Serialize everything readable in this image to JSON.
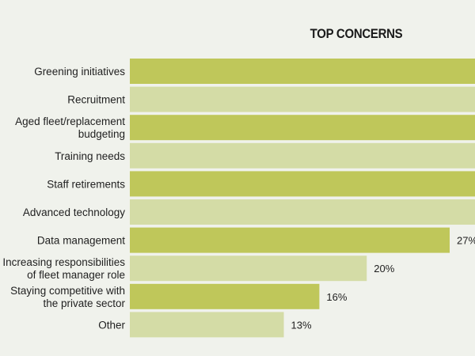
{
  "chart_data": {
    "type": "bar",
    "orientation": "horizontal",
    "title": "TOP CONCERNS",
    "xlabel": "",
    "ylabel": "",
    "categories": [
      [
        "Greening initiatives"
      ],
      [
        "Recruitment"
      ],
      [
        "Aged fleet/replacement",
        "budgeting"
      ],
      [
        "Training needs"
      ],
      [
        "Staff retirements"
      ],
      [
        "Advanced technology"
      ],
      [
        "Data management"
      ],
      [
        "Increasing responsibilities",
        "of fleet manager role"
      ],
      [
        "Staying competitive with",
        "the private sector"
      ],
      [
        "Other"
      ]
    ],
    "values": [
      null,
      null,
      null,
      null,
      null,
      null,
      27,
      20,
      16,
      13
    ],
    "value_labels": [
      "",
      "",
      "",
      "",
      "",
      "",
      "27%",
      "20%",
      "16%",
      "13%"
    ],
    "unit": "%",
    "xlim": [
      0,
      27
    ],
    "grid": false,
    "legend": "none",
    "colors": {
      "dark_bar": "#bfc75a",
      "light_bar": "#d4dca6",
      "background": "#f0f2ec",
      "text": "#1f1f1f"
    }
  }
}
